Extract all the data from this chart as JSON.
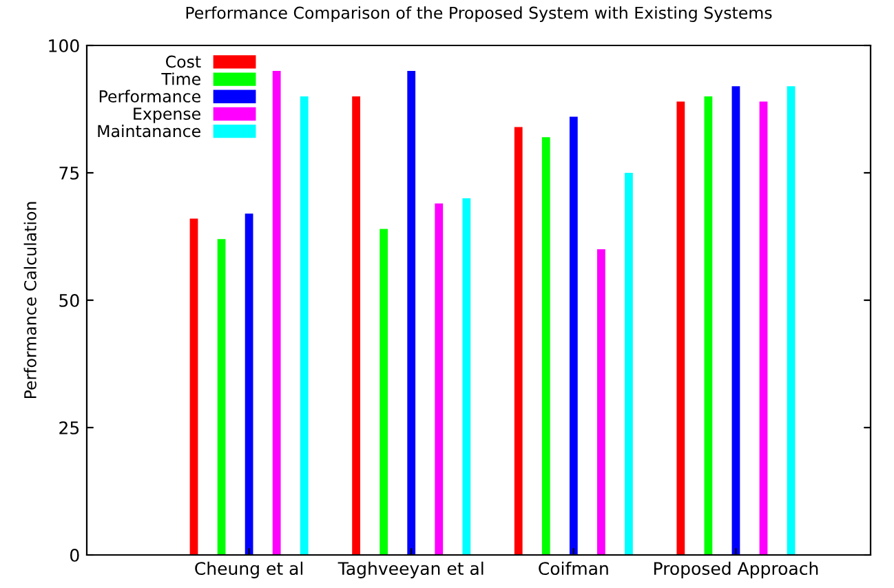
{
  "chart_data": {
    "type": "bar",
    "title": "Performance Comparison of the Proposed System with Existing Systems",
    "ylabel": "Performance Calculation",
    "categories": [
      "Cheung et al",
      "Taghveeyan et al",
      "Coifman",
      "Proposed Approach"
    ],
    "series": [
      {
        "name": "Cost",
        "color": "#ff0000",
        "values": [
          66,
          90,
          84,
          89
        ]
      },
      {
        "name": "Time",
        "color": "#00ff00",
        "values": [
          62,
          64,
          82,
          90
        ]
      },
      {
        "name": "Performance",
        "color": "#0000ff",
        "values": [
          67,
          95,
          86,
          92
        ]
      },
      {
        "name": "Expense",
        "color": "#ff00ff",
        "values": [
          95,
          69,
          60,
          89
        ]
      },
      {
        "name": "Maintanance",
        "color": "#00ffff",
        "values": [
          90,
          70,
          75,
          92
        ]
      }
    ],
    "ylim": [
      0,
      100
    ],
    "yticks": [
      0,
      25,
      50,
      75,
      100
    ],
    "grid": false,
    "legend": "top left"
  }
}
